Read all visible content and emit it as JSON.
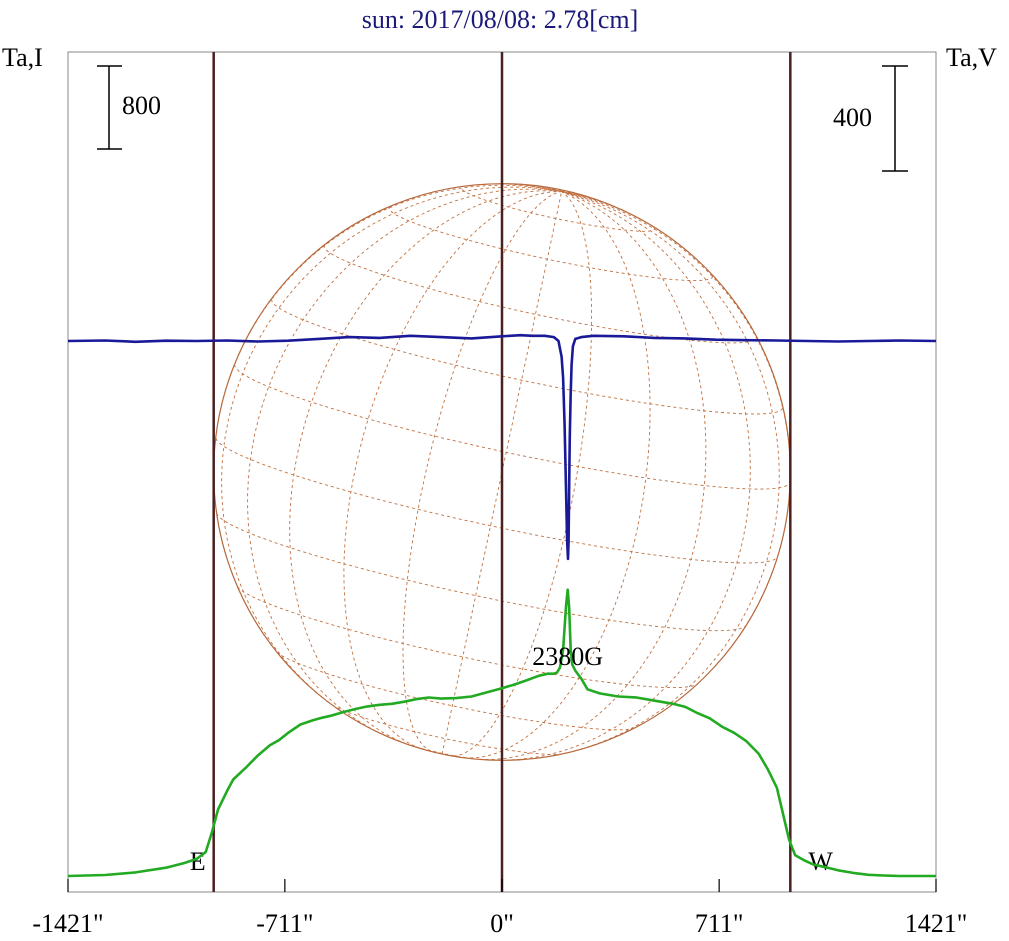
{
  "chart_data": {
    "type": "line",
    "title": "sun: 2017/08/08: 2.78[cm]",
    "ylabel_left": "Ta,I",
    "ylabel_right": "Ta,V",
    "x_ticks": [
      "-1421\"",
      "-711\"",
      "0\"",
      "711\"",
      "1421\""
    ],
    "x_tick_values": [
      -1421,
      -711,
      0,
      711,
      1421
    ],
    "xlim": [
      -1421,
      1421
    ],
    "scale_left": {
      "label": "800",
      "value": 800
    },
    "scale_right": {
      "label": "400",
      "value": 400
    },
    "limb_markers": [
      {
        "label": "E",
        "x": -944
      },
      {
        "label": "W",
        "x": 944
      }
    ],
    "center_marker": 0,
    "solar_radius_arcsec": 944,
    "annotation": {
      "text": "2380G",
      "x": 215
    },
    "series": [
      {
        "name": "I",
        "color": "#22aa22",
        "axis": "left",
        "x": [
          -1421,
          -1300,
          -1200,
          -1100,
          -1040,
          -1000,
          -970,
          -950,
          -930,
          -900,
          -880,
          -840,
          -800,
          -760,
          -730,
          -700,
          -660,
          -620,
          -590,
          -560,
          -520,
          -480,
          -440,
          -400,
          -360,
          -320,
          -280,
          -240,
          -200,
          -150,
          -100,
          -50,
          0,
          40,
          80,
          120,
          150,
          170,
          180,
          190,
          200,
          210,
          215,
          220,
          225,
          230,
          240,
          260,
          280,
          320,
          380,
          440,
          500,
          560,
          600,
          640,
          680,
          720,
          760,
          800,
          840,
          870,
          900,
          920,
          940,
          960,
          990,
          1020,
          1060,
          1100,
          1150,
          1200,
          1250,
          1300,
          1350,
          1421
        ],
        "y": [
          0,
          10,
          35,
          80,
          125,
          165,
          230,
          420,
          640,
          820,
          930,
          1040,
          1160,
          1260,
          1310,
          1380,
          1460,
          1500,
          1525,
          1545,
          1580,
          1610,
          1635,
          1650,
          1660,
          1680,
          1705,
          1720,
          1710,
          1715,
          1730,
          1770,
          1810,
          1845,
          1885,
          1930,
          1950,
          1950,
          1960,
          2010,
          2180,
          2610,
          2760,
          2580,
          2180,
          2040,
          1980,
          1900,
          1800,
          1760,
          1730,
          1720,
          1690,
          1660,
          1630,
          1570,
          1520,
          1440,
          1380,
          1300,
          1180,
          1030,
          850,
          600,
          350,
          200,
          150,
          110,
          85,
          55,
          30,
          12,
          5,
          0,
          0,
          0
        ]
      },
      {
        "name": "V",
        "color": "#1a1a99",
        "axis": "right",
        "x": [
          -1421,
          -1300,
          -1200,
          -1100,
          -1000,
          -900,
          -800,
          -700,
          -600,
          -500,
          -400,
          -300,
          -200,
          -100,
          0,
          60,
          100,
          140,
          170,
          185,
          195,
          200,
          205,
          210,
          213,
          216,
          218,
          220,
          222,
          225,
          228,
          232,
          240,
          260,
          300,
          400,
          500,
          600,
          700,
          800,
          900,
          1000,
          1100,
          1200,
          1300,
          1421
        ],
        "y": [
          0,
          2,
          -3,
          1,
          0,
          2,
          -2,
          1,
          8,
          15,
          12,
          20,
          15,
          10,
          18,
          22,
          20,
          20,
          15,
          0,
          -60,
          -140,
          -320,
          -580,
          -760,
          -830,
          -760,
          -540,
          -360,
          -200,
          -90,
          -20,
          8,
          15,
          20,
          18,
          12,
          10,
          5,
          3,
          2,
          0,
          -2,
          0,
          2,
          0
        ]
      }
    ]
  }
}
